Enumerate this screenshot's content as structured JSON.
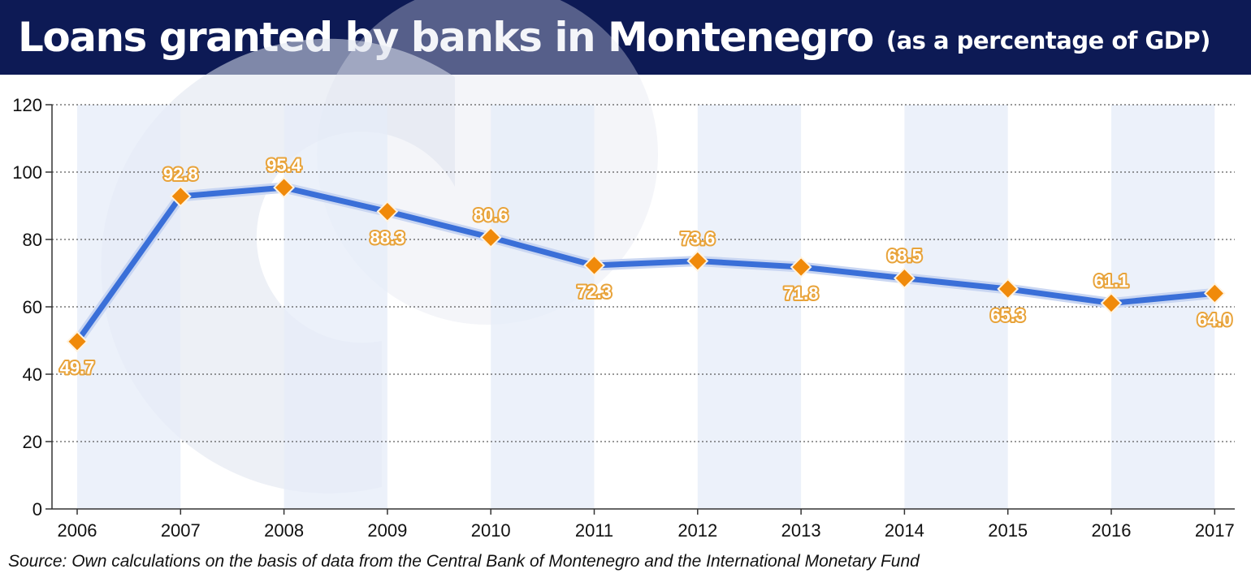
{
  "header": {
    "title": "Loans granted by banks in Montenegro",
    "subtitle": "(as a percentage of GDP)"
  },
  "source": "Source: Own calculations on the basis of data from the Central Bank of Montenegro and the International Monetary Fund",
  "colors": {
    "header_bg": "#0d1a55",
    "line": "#3a6fd8",
    "line_outline": "#c9d6f2",
    "marker": "#f08a0a",
    "band": "#e6ecf8",
    "label_outline": "#e8a33a"
  },
  "chart_data": {
    "type": "line",
    "title": "Loans granted by banks in Montenegro",
    "subtitle": "(as a percentage of GDP)",
    "xlabel": "",
    "ylabel": "",
    "x": [
      "2006",
      "2007",
      "2008",
      "2009",
      "2010",
      "2011",
      "2012",
      "2013",
      "2014",
      "2015",
      "2016",
      "2017"
    ],
    "series": [
      {
        "values": [
          49.7,
          92.8,
          95.4,
          88.3,
          80.6,
          72.3,
          73.6,
          71.8,
          68.5,
          65.3,
          61.1,
          64.0
        ],
        "labels": [
          "49.7",
          "92.8",
          "95.4",
          "88.3",
          "80.6",
          "72.3",
          "73.6",
          "71.8",
          "68.5",
          "65.3",
          "61.1",
          "64.0"
        ],
        "label_positions": [
          "below",
          "above",
          "above",
          "below",
          "above",
          "below",
          "above",
          "below",
          "above",
          "below",
          "above",
          "below"
        ]
      }
    ],
    "ylim": [
      0,
      120
    ],
    "yticks": [
      0,
      20,
      40,
      60,
      80,
      100,
      120
    ],
    "grid": "horizontal dotted",
    "legend": "none"
  }
}
